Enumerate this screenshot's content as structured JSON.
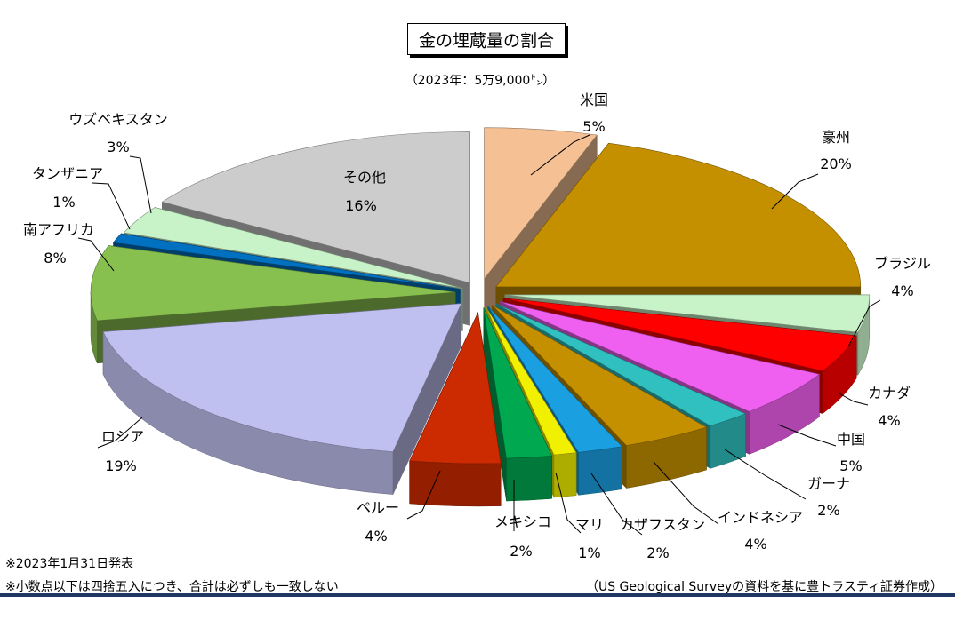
{
  "chart_data": {
    "type": "pie",
    "title": "金の埋蔵量の割合",
    "subtitle": "（2023年：5万9,000㌧）",
    "slices": [
      {
        "label": "米国",
        "value_label": "5%",
        "value": 5,
        "color": "#f4c094"
      },
      {
        "label": "豪州",
        "value_label": "20%",
        "value": 20,
        "color": "#c49000"
      },
      {
        "label": "ブラジル",
        "value_label": "4%",
        "value": 4,
        "color": "#c8f2c8"
      },
      {
        "label": "カナダ",
        "value_label": "4%",
        "value": 4,
        "color": "#ff0000"
      },
      {
        "label": "中国",
        "value_label": "5%",
        "value": 5,
        "color": "#f060f0"
      },
      {
        "label": "ガーナ",
        "value_label": "2%",
        "value": 2,
        "color": "#30c0c0"
      },
      {
        "label": "インドネシア",
        "value_label": "4%",
        "value": 4,
        "color": "#c49000"
      },
      {
        "label": "カザフスタン",
        "value_label": "2%",
        "value": 2,
        "color": "#1a9fe0"
      },
      {
        "label": "マリ",
        "value_label": "1%",
        "value": 1,
        "color": "#f0f000"
      },
      {
        "label": "メキシコ",
        "value_label": "2%",
        "value": 2,
        "color": "#00a850"
      },
      {
        "label": "ペルー",
        "value_label": "4%",
        "value": 4,
        "color": "#cc2a00"
      },
      {
        "label": "ロシア",
        "value_label": "19%",
        "value": 19,
        "color": "#c0c0f0"
      },
      {
        "label": "南アフリカ",
        "value_label": "8%",
        "value": 8,
        "color": "#88c050"
      },
      {
        "label": "タンザニア",
        "value_label": "1%",
        "value": 1,
        "color": "#0070c0"
      },
      {
        "label": "ウズベキスタン",
        "value_label": "3%",
        "value": 3,
        "color": "#c8f2c8"
      },
      {
        "label": "その他",
        "value_label": "16%",
        "value": 16,
        "color": "#cccccc"
      }
    ]
  },
  "footer": {
    "note1": "※2023年1月31日発表",
    "note2": "※小数点以下は四捨五入につき、合計は必ずしも一致しない",
    "source": "（US Geological Surveyの資料を基に豊トラスティ証券作成）"
  }
}
